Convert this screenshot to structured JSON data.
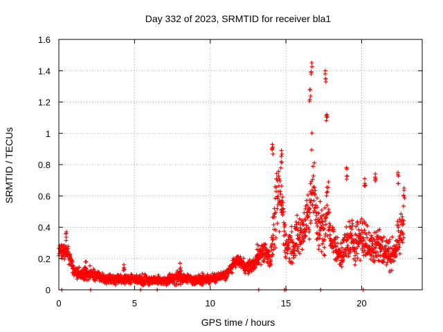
{
  "chart_data": {
    "type": "scatter",
    "title": "Day 332 of 2023, SRMTID for receiver bla1",
    "xlabel": "GPS time / hours",
    "ylabel": "SRMTID / TECUs",
    "xlim": [
      0,
      24
    ],
    "ylim": [
      0,
      1.6
    ],
    "xticks": [
      0,
      5,
      10,
      15,
      20
    ],
    "xtick_labels": [
      "0",
      "5",
      "10",
      "15",
      "20"
    ],
    "yticks": [
      0,
      0.2,
      0.4,
      0.6,
      0.8,
      1.0,
      1.2,
      1.4,
      1.6
    ],
    "ytick_labels": [
      "0",
      "0.2",
      "0.4",
      "0.6",
      "0.8",
      "1",
      "1.2",
      "1.4",
      "1.6"
    ],
    "grid": true,
    "marker": "plus",
    "marker_color": "#ff0000",
    "series": [
      {
        "name": "SRMTID",
        "color": "#ff0000",
        "envelope": {
          "note": "Approximate per-interval median and spread of the plotted samples (data units, hours / TECU)",
          "x": [
            0.0,
            0.25,
            0.5,
            0.75,
            1.0,
            1.5,
            2.0,
            2.5,
            3.0,
            4.0,
            5.0,
            6.0,
            7.0,
            8.0,
            9.0,
            10.0,
            11.0,
            11.75,
            12.5,
            13.0,
            13.25,
            13.5,
            14.0,
            14.25,
            14.5,
            14.75,
            15.0,
            15.5,
            16.0,
            16.5,
            16.75,
            17.0,
            17.5,
            17.75,
            18.0,
            18.5,
            19.0,
            19.25,
            19.5,
            20.0,
            20.5,
            21.0,
            21.5,
            22.0,
            22.5,
            22.8
          ],
          "median": [
            0.24,
            0.25,
            0.24,
            0.2,
            0.12,
            0.1,
            0.1,
            0.09,
            0.07,
            0.07,
            0.07,
            0.06,
            0.06,
            0.08,
            0.06,
            0.07,
            0.09,
            0.19,
            0.14,
            0.17,
            0.22,
            0.26,
            0.2,
            0.45,
            0.6,
            0.55,
            0.28,
            0.3,
            0.35,
            0.5,
            0.7,
            0.45,
            0.35,
            0.55,
            0.33,
            0.22,
            0.28,
            0.32,
            0.3,
            0.35,
            0.27,
            0.3,
            0.24,
            0.22,
            0.32,
            0.45
          ],
          "spread": [
            0.06,
            0.06,
            0.06,
            0.05,
            0.04,
            0.04,
            0.04,
            0.03,
            0.03,
            0.03,
            0.03,
            0.03,
            0.03,
            0.04,
            0.03,
            0.03,
            0.03,
            0.03,
            0.04,
            0.04,
            0.06,
            0.08,
            0.06,
            0.2,
            0.2,
            0.2,
            0.1,
            0.12,
            0.15,
            0.2,
            0.25,
            0.18,
            0.15,
            0.2,
            0.12,
            0.08,
            0.12,
            0.15,
            0.12,
            0.14,
            0.1,
            0.14,
            0.1,
            0.08,
            0.12,
            0.12
          ]
        },
        "peaks": [
          {
            "x": 0.5,
            "y": 0.37
          },
          {
            "x": 1.8,
            "y": 0.18
          },
          {
            "x": 4.3,
            "y": 0.16
          },
          {
            "x": 8.0,
            "y": 0.17
          },
          {
            "x": 12.0,
            "y": 0.21
          },
          {
            "x": 13.1,
            "y": 0.29
          },
          {
            "x": 14.1,
            "y": 0.93
          },
          {
            "x": 14.7,
            "y": 0.89
          },
          {
            "x": 16.6,
            "y": 1.28
          },
          {
            "x": 16.7,
            "y": 1.45
          },
          {
            "x": 17.6,
            "y": 1.4
          },
          {
            "x": 17.7,
            "y": 1.12
          },
          {
            "x": 19.0,
            "y": 0.78
          },
          {
            "x": 20.2,
            "y": 0.71
          },
          {
            "x": 20.9,
            "y": 0.74
          },
          {
            "x": 22.4,
            "y": 0.75
          },
          {
            "x": 22.8,
            "y": 0.65
          }
        ],
        "zero_points": [
          0.2,
          2.1,
          5.4,
          6.5,
          13.2,
          14.9,
          15.0,
          17.3,
          20.1
        ]
      }
    ]
  }
}
